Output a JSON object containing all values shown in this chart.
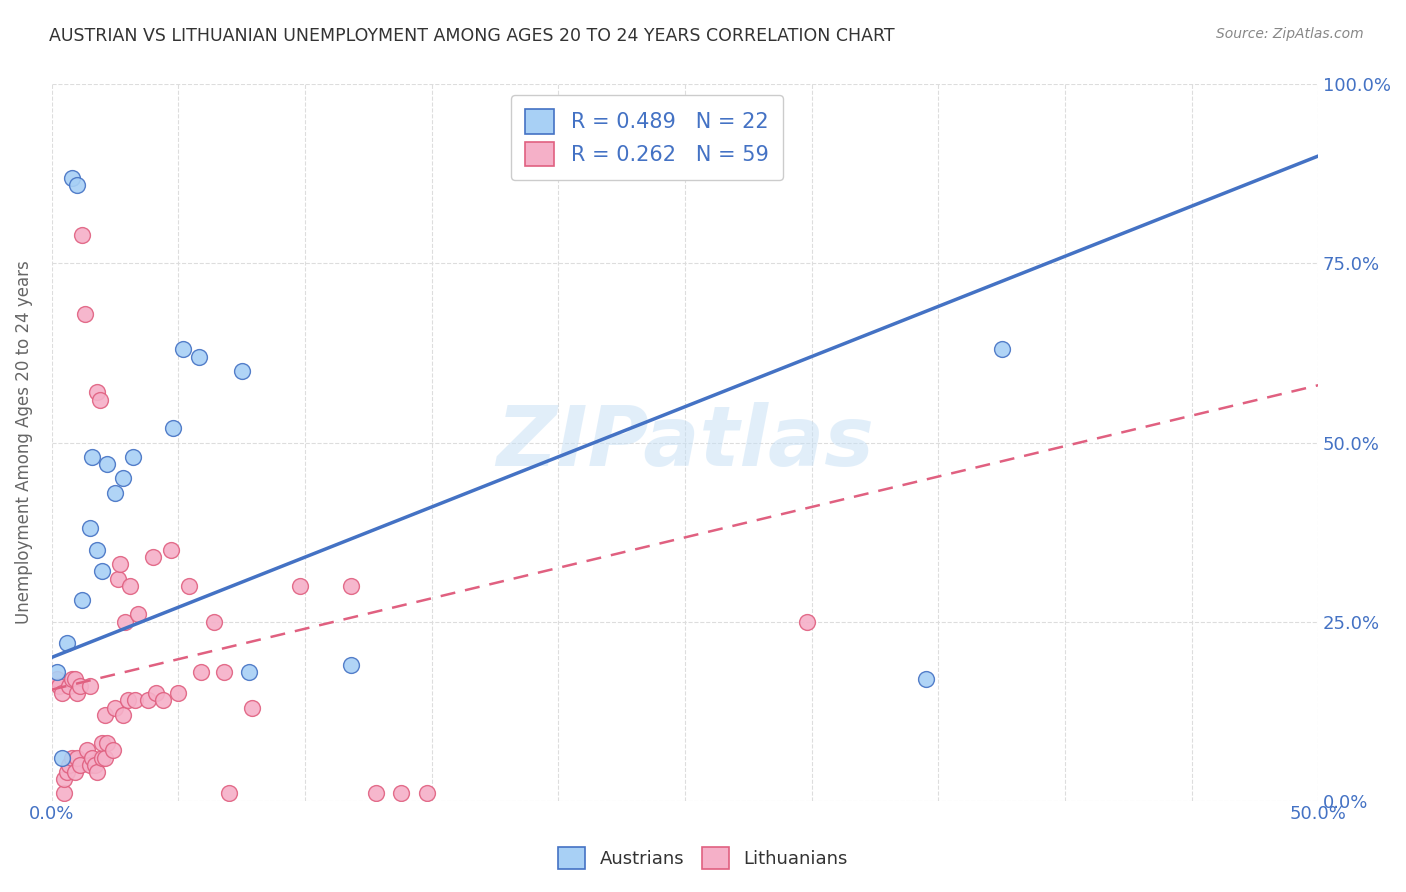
{
  "title": "AUSTRIAN VS LITHUANIAN UNEMPLOYMENT AMONG AGES 20 TO 24 YEARS CORRELATION CHART",
  "source": "Source: ZipAtlas.com",
  "ylabel_label": "Unemployment Among Ages 20 to 24 years",
  "legend_austrians": "Austrians",
  "legend_lithuanians": "Lithuanians",
  "R_austrians": 0.489,
  "N_austrians": 22,
  "R_lithuanians": 0.262,
  "N_lithuanians": 59,
  "color_austrian": "#a8d0f5",
  "color_lithuanian": "#f5b0c8",
  "color_blue": "#4472c4",
  "color_pink": "#e06080",
  "watermark": "ZIPatlas",
  "austrian_x": [
    0.002,
    0.004,
    0.006,
    0.008,
    0.01,
    0.012,
    0.015,
    0.016,
    0.018,
    0.02,
    0.022,
    0.025,
    0.028,
    0.032,
    0.048,
    0.052,
    0.058,
    0.075,
    0.078,
    0.118,
    0.345,
    0.375
  ],
  "austrian_y": [
    0.18,
    0.06,
    0.22,
    0.87,
    0.86,
    0.28,
    0.38,
    0.48,
    0.35,
    0.32,
    0.47,
    0.43,
    0.45,
    0.48,
    0.52,
    0.63,
    0.62,
    0.6,
    0.18,
    0.19,
    0.17,
    0.63
  ],
  "lithuanian_x": [
    0.002,
    0.003,
    0.004,
    0.005,
    0.005,
    0.006,
    0.007,
    0.007,
    0.008,
    0.008,
    0.009,
    0.009,
    0.01,
    0.01,
    0.011,
    0.011,
    0.012,
    0.013,
    0.014,
    0.015,
    0.015,
    0.016,
    0.017,
    0.018,
    0.018,
    0.019,
    0.02,
    0.02,
    0.021,
    0.021,
    0.022,
    0.024,
    0.025,
    0.026,
    0.027,
    0.028,
    0.029,
    0.03,
    0.031,
    0.033,
    0.034,
    0.038,
    0.04,
    0.041,
    0.044,
    0.047,
    0.05,
    0.054,
    0.059,
    0.064,
    0.068,
    0.07,
    0.079,
    0.098,
    0.118,
    0.128,
    0.138,
    0.148,
    0.298
  ],
  "lithuanian_y": [
    0.17,
    0.16,
    0.15,
    0.01,
    0.03,
    0.04,
    0.16,
    0.05,
    0.17,
    0.06,
    0.17,
    0.04,
    0.15,
    0.06,
    0.16,
    0.05,
    0.79,
    0.68,
    0.07,
    0.16,
    0.05,
    0.06,
    0.05,
    0.04,
    0.57,
    0.56,
    0.06,
    0.08,
    0.06,
    0.12,
    0.08,
    0.07,
    0.13,
    0.31,
    0.33,
    0.12,
    0.25,
    0.14,
    0.3,
    0.14,
    0.26,
    0.14,
    0.34,
    0.15,
    0.14,
    0.35,
    0.15,
    0.3,
    0.18,
    0.25,
    0.18,
    0.01,
    0.13,
    0.3,
    0.3,
    0.01,
    0.01,
    0.01,
    0.25
  ],
  "austrian_line_x": [
    0.0,
    0.5
  ],
  "austrian_line_y": [
    0.2,
    0.9
  ],
  "lithuanian_line_x": [
    0.0,
    0.5
  ],
  "lithuanian_line_y": [
    0.155,
    0.58
  ],
  "xlim": [
    0.0,
    0.5
  ],
  "ylim": [
    0.0,
    1.0
  ],
  "title_color": "#333333",
  "axis_color": "#4472c4",
  "grid_color": "#dddddd"
}
